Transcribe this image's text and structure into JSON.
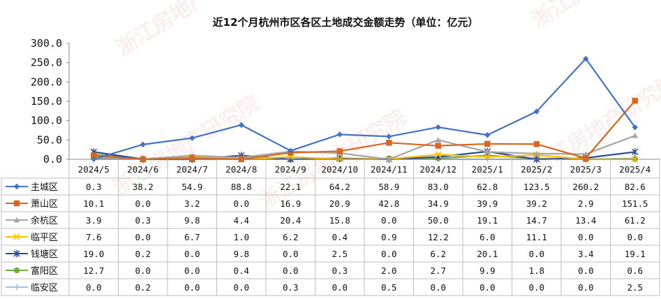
{
  "chart_data": {
    "type": "line",
    "title": "近12个月杭州市区各区土地成交金额走势（单位：亿元）",
    "categories": [
      "2024/5",
      "2024/6",
      "2024/7",
      "2024/8",
      "2024/9",
      "2024/10",
      "2024/11",
      "2024/12",
      "2025/1",
      "2025/2",
      "2025/3",
      "2025/4"
    ],
    "y_ticks": [
      "0.0",
      "50.0",
      "100.0",
      "150.0",
      "200.0",
      "250.0",
      "300.0"
    ],
    "ylim": [
      0,
      300
    ],
    "grid": false,
    "legend": "data-table-left",
    "series": [
      {
        "name": "主城区",
        "color": "#4472c4",
        "marker": "diamond",
        "values": [
          0.3,
          38.2,
          54.9,
          88.8,
          22.1,
          64.2,
          58.9,
          83.0,
          62.8,
          123.5,
          260.2,
          82.6
        ],
        "labels": [
          "0.3",
          "38.2",
          "54.9",
          "88.8",
          "22.1",
          "64.2",
          "58.9",
          "83.0",
          "62.8",
          "123.5",
          "260.2",
          "82.6"
        ]
      },
      {
        "name": "萧山区",
        "color": "#d9651f",
        "marker": "square",
        "values": [
          10.1,
          0.0,
          3.2,
          0.0,
          16.9,
          20.9,
          42.8,
          34.9,
          39.9,
          39.2,
          2.9,
          151.5
        ],
        "labels": [
          "10.1",
          "0.0",
          "3.2",
          "0.0",
          "16.9",
          "20.9",
          "42.8",
          "34.9",
          "39.9",
          "39.2",
          "2.9",
          "151.5"
        ]
      },
      {
        "name": "余杭区",
        "color": "#a5a5a5",
        "marker": "triangle",
        "values": [
          3.9,
          0.3,
          9.8,
          4.4,
          20.4,
          15.8,
          0.0,
          50.0,
          19.1,
          14.7,
          13.4,
          61.2
        ],
        "labels": [
          "3.9",
          "0.3",
          "9.8",
          "4.4",
          "20.4",
          "15.8",
          "0.0",
          "50.0",
          "19.1",
          "14.7",
          "13.4",
          "61.2"
        ]
      },
      {
        "name": "临平区",
        "color": "#ffc000",
        "marker": "x",
        "values": [
          7.6,
          0.0,
          6.7,
          1.0,
          6.2,
          0.4,
          0.9,
          12.2,
          6.0,
          11.1,
          0.0,
          0.0
        ],
        "labels": [
          "7.6",
          "0.0",
          "6.7",
          "1.0",
          "6.2",
          "0.4",
          "0.9",
          "12.2",
          "6.0",
          "11.1",
          "0.0",
          "0.0"
        ]
      },
      {
        "name": "钱塘区",
        "color": "#2e4a9a",
        "marker": "star",
        "values": [
          19.0,
          0.2,
          0.0,
          9.8,
          0.0,
          2.5,
          0.0,
          6.2,
          20.1,
          0.0,
          3.4,
          19.1
        ],
        "labels": [
          "19.0",
          "0.2",
          "0.0",
          "9.8",
          "0.0",
          "2.5",
          "0.0",
          "6.2",
          "20.1",
          "0.0",
          "3.4",
          "19.1"
        ]
      },
      {
        "name": "富阳区",
        "color": "#70ad47",
        "marker": "circle",
        "values": [
          12.7,
          0.0,
          0.0,
          0.4,
          0.0,
          0.3,
          2.0,
          2.7,
          9.9,
          1.8,
          0.0,
          0.6
        ],
        "labels": [
          "12.7",
          "0.0",
          "0.0",
          "0.4",
          "0.0",
          "0.3",
          "2.0",
          "2.7",
          "9.9",
          "1.8",
          "0.0",
          "0.6"
        ]
      },
      {
        "name": "临安区",
        "color": "#9dc3e6",
        "marker": "plus",
        "values": [
          0.0,
          0.2,
          0.0,
          0.0,
          0.3,
          0.0,
          0.5,
          0.0,
          0.0,
          0.0,
          0.0,
          2.5
        ],
        "labels": [
          "0.0",
          "0.2",
          "0.0",
          "0.0",
          "0.3",
          "0.0",
          "0.5",
          "0.0",
          "0.0",
          "0.0",
          "0.0",
          "2.5"
        ]
      }
    ]
  },
  "watermark": "浙江房地产研究院"
}
